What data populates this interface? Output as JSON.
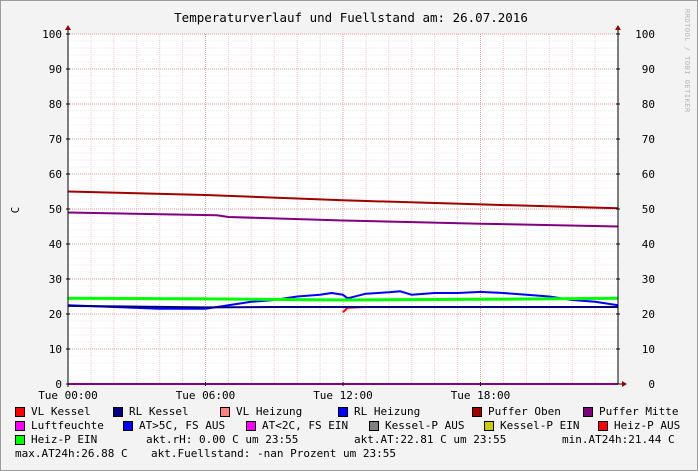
{
  "chart_data": {
    "type": "line",
    "title": "Temperaturverlauf und Fuellstand am: 26.07.2016",
    "ylabel": "C",
    "watermark": "RRDTOOL / TOBI OETIKER",
    "ylim": [
      0,
      100
    ],
    "yticks": [
      0,
      10,
      20,
      30,
      40,
      50,
      60,
      70,
      80,
      90,
      100
    ],
    "xlim": [
      0,
      24
    ],
    "xticks": [
      {
        "x": 0,
        "label": "Tue 00:00"
      },
      {
        "x": 6,
        "label": "Tue 06:00"
      },
      {
        "x": 12,
        "label": "Tue 12:00"
      },
      {
        "x": 18,
        "label": "Tue 18:00"
      }
    ],
    "grid": true,
    "legend_placement": "bottom",
    "series": [
      {
        "name": "VL Kessel",
        "color": "#ff0000",
        "x": [
          0,
          11.9,
          12.0,
          12.2,
          13,
          24
        ],
        "y": [
          null,
          null,
          20.5,
          21.8,
          22.0,
          22.0
        ]
      },
      {
        "name": "RL Kessel",
        "color": "#000080",
        "x": [
          0,
          24
        ],
        "y": [
          null,
          null
        ]
      },
      {
        "name": "VL Heizung",
        "color": "#ff8080",
        "x": [
          0,
          24
        ],
        "y": [
          null,
          null
        ]
      },
      {
        "name": "RL Heizung",
        "color": "#0000ff",
        "x": [
          0,
          2,
          4,
          6,
          7,
          8,
          9,
          10,
          11,
          11.5,
          12,
          12.2,
          13,
          14,
          14.5,
          15,
          16,
          17,
          18,
          19,
          20,
          21,
          22,
          23,
          24
        ],
        "y": [
          22.5,
          22.0,
          21.5,
          21.5,
          22.5,
          23.5,
          24.0,
          25.0,
          25.5,
          26.0,
          25.5,
          24.5,
          25.8,
          26.2,
          26.5,
          25.5,
          26.0,
          26.0,
          26.3,
          26.0,
          25.5,
          25.0,
          24.0,
          23.5,
          22.5
        ]
      },
      {
        "name": "Puffer Oben",
        "color": "#a00000",
        "x": [
          0,
          6,
          12,
          18,
          24
        ],
        "y": [
          55.0,
          54.0,
          52.5,
          51.3,
          50.2
        ]
      },
      {
        "name": "Puffer Mitte",
        "color": "#800080",
        "x": [
          0,
          6.5,
          7,
          12,
          18,
          24
        ],
        "y": [
          49.0,
          48.2,
          47.7,
          46.7,
          45.8,
          45.0
        ]
      },
      {
        "name": "Luftfeuchte",
        "color": "#ff00ff",
        "x": [
          0,
          24
        ],
        "y": [
          0.0,
          0.0
        ]
      },
      {
        "name": "AT>5C, FS AUS",
        "color": "#0000ff",
        "x": [
          0,
          24
        ],
        "y": [
          null,
          null
        ]
      },
      {
        "name": "AT<2C, FS EIN",
        "color": "#ff00ff",
        "x": [
          0,
          24
        ],
        "y": [
          null,
          null
        ]
      },
      {
        "name": "Kessel-P AUS",
        "color": "#808080",
        "x": [
          0,
          24
        ],
        "y": [
          null,
          null
        ]
      },
      {
        "name": "Kessel-P EIN",
        "color": "#cccc00",
        "x": [
          0,
          24
        ],
        "y": [
          null,
          null
        ]
      },
      {
        "name": "Heiz-P AUS",
        "color": "#ff0000",
        "x": [
          0,
          24
        ],
        "y": [
          null,
          null
        ]
      },
      {
        "name": "Heiz-P EIN",
        "color": "#00ff00",
        "x": [
          0,
          6,
          12,
          18,
          24
        ],
        "y": [
          24.5,
          24.3,
          24.0,
          24.2,
          24.5
        ]
      },
      {
        "name": "",
        "color": "#000080",
        "x": [
          0,
          3,
          6,
          9,
          12,
          15,
          18,
          21,
          24
        ],
        "y": [
          22.3,
          22.1,
          21.9,
          22.0,
          22.0,
          22.0,
          22.0,
          22.0,
          22.0
        ]
      }
    ]
  },
  "legend": {
    "items": [
      {
        "label": "VL Kessel",
        "color": "#ff0000"
      },
      {
        "label": "RL Kessel",
        "color": "#000080"
      },
      {
        "label": "VL Heizung",
        "color": "#ff8080"
      },
      {
        "label": "RL Heizung",
        "color": "#0000ff"
      },
      {
        "label": "Puffer Oben",
        "color": "#a00000"
      },
      {
        "label": "Puffer Mitte",
        "color": "#800080"
      },
      {
        "label": "Luftfeuchte",
        "color": "#ff00ff"
      },
      {
        "label": "AT>5C, FS AUS",
        "color": "#0000ff"
      },
      {
        "label": "AT<2C, FS EIN",
        "color": "#ff00ff"
      },
      {
        "label": "Kessel-P AUS",
        "color": "#808080"
      },
      {
        "label": "Kessel-P EIN",
        "color": "#cccc00"
      },
      {
        "label": "Heiz-P AUS",
        "color": "#ff0000"
      },
      {
        "label": "Heiz-P EIN",
        "color": "#00ff00"
      }
    ],
    "stats": {
      "rh": "akt.rH: 0.00 C um 23:55",
      "at": "akt.AT:22.81 C um 23:55",
      "min_at": "min.AT24h:21.44 C",
      "max_at": "max.AT24h:26.88 C",
      "fuellstand": "akt.Fuellstand: -nan Prozent um 23:55"
    }
  }
}
